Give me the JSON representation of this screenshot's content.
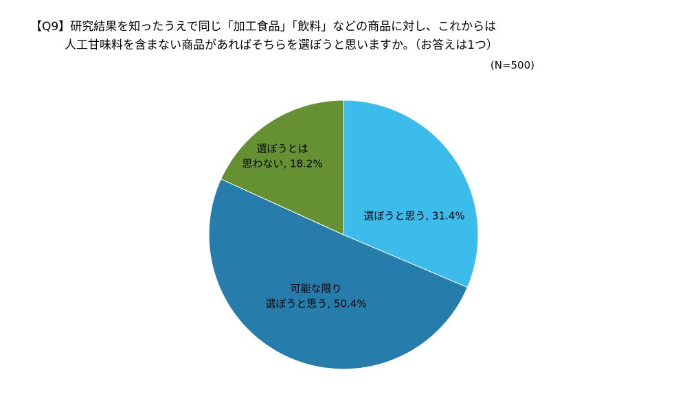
{
  "title_lines": [
    "【Q9】研究結果を知ったうえで同じ「加工食品」「飲料」などの商品に対し、これからは",
    "人工甘味料を含まない商品があればそちらを選ぼうと思いますか。（お答えは1つ）"
  ],
  "sample_size": "(N=500)",
  "chart_data": {
    "type": "pie",
    "title": "【Q9】研究結果を知ったうえで同じ「加工食品」「飲料」などの商品に対し、これからは人工甘味料を含まない商品があればそちらを選ぼうと思いますか。（お答えは1つ）",
    "n_label": "(N=500)",
    "start_angle_deg": 0,
    "direction": "clockwise",
    "slices": [
      {
        "label_lines": [
          "選ぼうと思う, 31.4%"
        ],
        "value": 31.4,
        "color": "#3BBCEB"
      },
      {
        "label_lines": [
          "可能な限り",
          "選ぼうと思う, 50.4%"
        ],
        "value": 50.4,
        "color": "#267CAA"
      },
      {
        "label_lines": [
          "選ぼうとは",
          "思わない, 18.2%"
        ],
        "value": 18.2,
        "color": "#659132"
      }
    ]
  }
}
